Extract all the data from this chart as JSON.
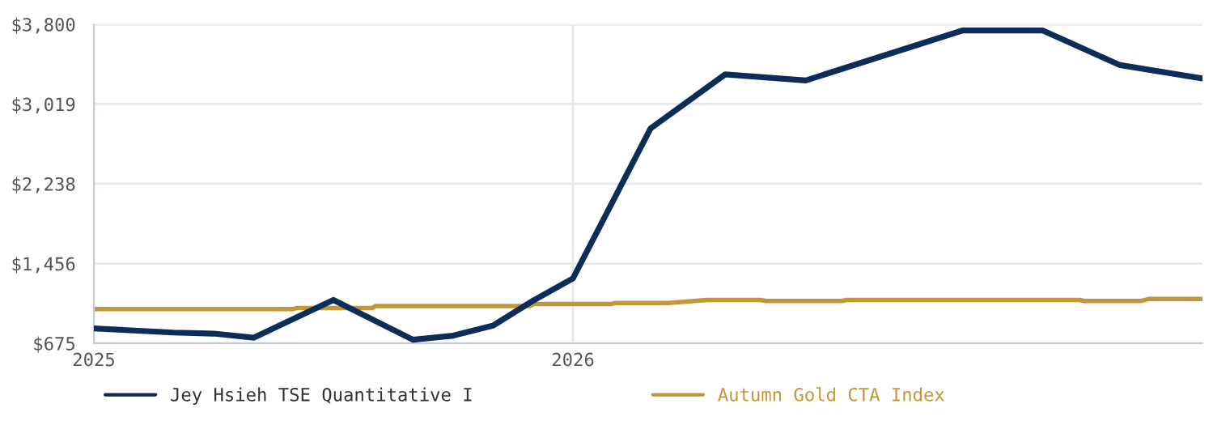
{
  "chart_data": {
    "type": "line",
    "series": [
      {
        "name": "Jey Hsieh TSE Quantitative I",
        "color": "#0c2d57",
        "x": [
          2025.0,
          2025.084,
          2025.166,
          2025.25,
          2025.334,
          2025.5,
          2025.666,
          2025.75,
          2025.834,
          2025.916,
          2026.0,
          2026.162,
          2026.318,
          2026.402,
          2026.486,
          2026.814,
          2026.98,
          2027.142,
          2027.314
        ],
        "values": [
          820,
          800,
          780,
          770,
          730,
          1100,
          710,
          750,
          850,
          1090,
          1310,
          2780,
          3310,
          3280,
          3250,
          3740,
          3740,
          3400,
          3270
        ]
      },
      {
        "name": "Autumn Gold CTA Index",
        "color": "#c4963c",
        "x": [
          2025.0,
          2025.416,
          2025.422,
          2025.581,
          2025.588,
          2025.909,
          2025.919,
          2026.081,
          2026.088,
          2026.199,
          2026.28,
          2026.392,
          2026.402,
          2026.561,
          2026.571,
          2027.057,
          2027.068,
          2027.186,
          2027.203,
          2027.314
        ],
        "values": [
          1010,
          1010,
          1020,
          1020,
          1040,
          1040,
          1060,
          1060,
          1070,
          1070,
          1100,
          1100,
          1090,
          1090,
          1100,
          1100,
          1090,
          1090,
          1110,
          1110
        ]
      }
    ],
    "xlim": [
      2025,
      2027.314
    ],
    "xticks": [
      2025,
      2026
    ],
    "ylim": [
      675,
      3800
    ],
    "yticks": [
      {
        "value": 675,
        "label": "$675"
      },
      {
        "value": 1456,
        "label": "$1,456"
      },
      {
        "value": 2238,
        "label": "$2,238"
      },
      {
        "value": 3019,
        "label": "$3,019"
      },
      {
        "value": 3800,
        "label": "$3,800"
      }
    ],
    "grid": true,
    "legend": "bottom",
    "marker": "none",
    "line_style": "solid"
  }
}
